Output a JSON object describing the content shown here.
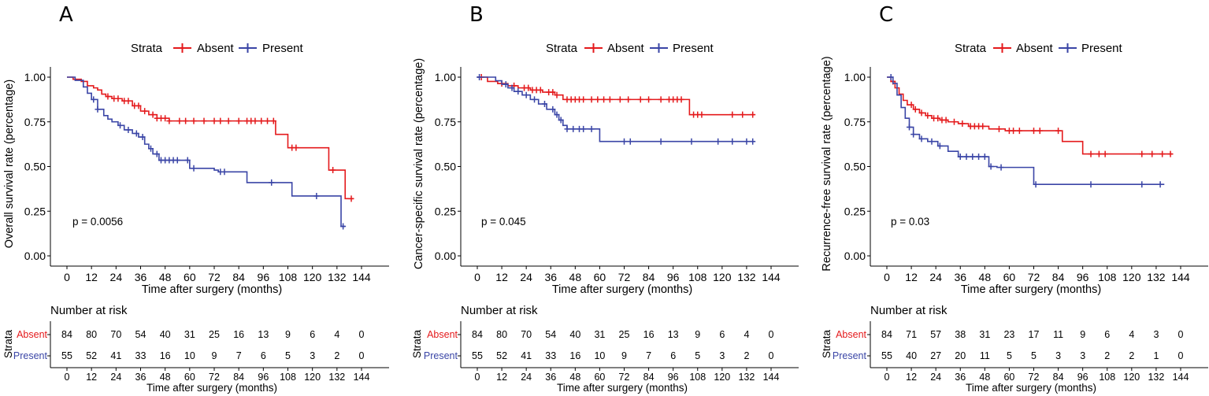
{
  "strata_legend_title": "Strata",
  "colors": {
    "absent": "#e41a1c",
    "present": "#3a45a6"
  },
  "risk_table_title": "Number at risk",
  "risk_strata_label": "Strata",
  "chart_data": [
    {
      "type": "line",
      "panel": "A",
      "ylabel": "Overall survival rate (percentage)",
      "xlabel": "Time after surgery (months)",
      "risk_xlabel": "Time after surgery (months)",
      "pvalue": "p = 0.0056",
      "xlim": [
        0,
        144
      ],
      "ylim": [
        0,
        1
      ],
      "xticks": [
        0,
        12,
        24,
        36,
        48,
        60,
        72,
        84,
        96,
        108,
        120,
        132,
        144
      ],
      "yticks": [
        "0.00",
        "0.25",
        "0.50",
        "0.75",
        "1.00"
      ],
      "series": [
        {
          "name": "Absent",
          "color": "#e41a1c",
          "x": [
            0,
            3,
            7,
            10,
            13,
            15,
            17,
            19,
            22,
            27,
            32,
            36,
            40,
            44,
            50,
            102,
            108,
            128,
            136,
            140
          ],
          "y": [
            1.0,
            0.988,
            0.976,
            0.952,
            0.94,
            0.928,
            0.905,
            0.892,
            0.88,
            0.867,
            0.84,
            0.81,
            0.79,
            0.77,
            0.755,
            0.68,
            0.605,
            0.48,
            0.32,
            0.32
          ],
          "censor_x": [
            20,
            23,
            25,
            28,
            30,
            33,
            35,
            38,
            42,
            44,
            46,
            48,
            50,
            55,
            58,
            62,
            67,
            72,
            75,
            79,
            84,
            88,
            90,
            92,
            95,
            98,
            101,
            110,
            112,
            130,
            139
          ]
        },
        {
          "name": "Present",
          "color": "#3a45a6",
          "x": [
            0,
            4,
            8,
            10,
            12,
            15,
            18,
            20,
            22,
            25,
            28,
            32,
            35,
            38,
            40,
            42,
            45,
            60,
            72,
            74,
            88,
            110,
            125,
            134,
            136
          ],
          "y": [
            1.0,
            0.982,
            0.945,
            0.91,
            0.875,
            0.82,
            0.785,
            0.765,
            0.75,
            0.73,
            0.705,
            0.685,
            0.665,
            0.625,
            0.6,
            0.57,
            0.535,
            0.49,
            0.48,
            0.47,
            0.41,
            0.335,
            0.335,
            0.165,
            0.165
          ],
          "censor_x": [
            13,
            15,
            26,
            30,
            34,
            37,
            41,
            44,
            46,
            48,
            50,
            52,
            54,
            59,
            62,
            75,
            77,
            100,
            122,
            135
          ]
        }
      ],
      "risk": {
        "Absent": [
          84,
          80,
          70,
          54,
          40,
          31,
          25,
          16,
          13,
          9,
          6,
          4,
          0
        ],
        "Present": [
          55,
          52,
          41,
          33,
          16,
          10,
          9,
          7,
          6,
          5,
          3,
          2,
          0
        ]
      }
    },
    {
      "type": "line",
      "panel": "B",
      "ylabel": "Cancer-specific survival rate (percentage)",
      "xlabel": "Time after surgery (months)",
      "risk_xlabel": "Time after surgery (months)",
      "pvalue": "p = 0.045",
      "xlim": [
        0,
        144
      ],
      "ylim": [
        0,
        1
      ],
      "xticks": [
        0,
        12,
        24,
        36,
        48,
        60,
        72,
        84,
        96,
        108,
        120,
        132,
        144
      ],
      "yticks": [
        "0.00",
        "0.25",
        "0.50",
        "0.75",
        "1.00"
      ],
      "series": [
        {
          "name": "Absent",
          "color": "#e41a1c",
          "x": [
            0,
            5,
            10,
            15,
            20,
            26,
            32,
            38,
            42,
            104,
            136
          ],
          "y": [
            1.0,
            0.976,
            0.964,
            0.952,
            0.94,
            0.928,
            0.916,
            0.9,
            0.875,
            0.79,
            0.79
          ],
          "censor_x": [
            2,
            12,
            18,
            23,
            25,
            27,
            29,
            31,
            35,
            37,
            39,
            44,
            46,
            48,
            50,
            52,
            56,
            59,
            62,
            65,
            70,
            74,
            80,
            84,
            90,
            94,
            96,
            98,
            100,
            106,
            108,
            110,
            125,
            130,
            135
          ]
        },
        {
          "name": "Present",
          "color": "#3a45a6",
          "x": [
            0,
            9,
            12,
            15,
            18,
            22,
            26,
            30,
            34,
            38,
            40,
            42,
            44,
            60,
            136
          ],
          "y": [
            1.0,
            0.98,
            0.96,
            0.94,
            0.92,
            0.9,
            0.875,
            0.85,
            0.82,
            0.79,
            0.76,
            0.73,
            0.71,
            0.64,
            0.64
          ],
          "censor_x": [
            1,
            14,
            17,
            20,
            24,
            28,
            33,
            37,
            39,
            41,
            44,
            47,
            50,
            52,
            56,
            72,
            75,
            90,
            105,
            118,
            125,
            132,
            135
          ]
        }
      ],
      "risk": {
        "Absent": [
          84,
          80,
          70,
          54,
          40,
          31,
          25,
          16,
          13,
          9,
          6,
          4,
          0
        ],
        "Present": [
          55,
          52,
          41,
          33,
          16,
          10,
          9,
          7,
          6,
          5,
          3,
          2,
          0
        ]
      }
    },
    {
      "type": "line",
      "panel": "C",
      "ylabel": "Recurrence-free survival rate (percentage)",
      "xlabel": "Time after surgery (months)",
      "risk_xlabel": "Time after surgery (months)",
      "pvalue": "p = 0.03",
      "xlim": [
        0,
        144
      ],
      "ylim": [
        0,
        1
      ],
      "xticks": [
        0,
        12,
        24,
        36,
        48,
        60,
        72,
        84,
        96,
        108,
        120,
        132,
        144
      ],
      "yticks": [
        "0.00",
        "0.25",
        "0.50",
        "0.75",
        "1.00"
      ],
      "series": [
        {
          "name": "Absent",
          "color": "#e41a1c",
          "x": [
            0,
            2,
            4,
            6,
            8,
            10,
            13,
            16,
            19,
            22,
            26,
            30,
            35,
            40,
            50,
            58,
            86,
            96,
            140
          ],
          "y": [
            1.0,
            0.976,
            0.94,
            0.905,
            0.87,
            0.845,
            0.82,
            0.8,
            0.785,
            0.77,
            0.76,
            0.75,
            0.74,
            0.725,
            0.71,
            0.7,
            0.64,
            0.57,
            0.57
          ],
          "censor_x": [
            3,
            12,
            14,
            17,
            20,
            23,
            25,
            27,
            29,
            33,
            37,
            41,
            43,
            45,
            47,
            55,
            60,
            62,
            65,
            72,
            75,
            84,
            100,
            104,
            107,
            125,
            130,
            135,
            139
          ]
        },
        {
          "name": "Present",
          "color": "#3a45a6",
          "x": [
            0,
            3,
            5,
            7,
            9,
            11,
            13,
            16,
            20,
            25,
            30,
            35,
            50,
            54,
            72,
            136
          ],
          "y": [
            1.0,
            0.965,
            0.9,
            0.83,
            0.77,
            0.72,
            0.68,
            0.655,
            0.64,
            0.615,
            0.585,
            0.555,
            0.5,
            0.495,
            0.4,
            0.4
          ],
          "censor_x": [
            2,
            11,
            13,
            17,
            22,
            26,
            36,
            39,
            42,
            45,
            48,
            51,
            56,
            73,
            100,
            125,
            134
          ]
        }
      ],
      "risk": {
        "Absent": [
          84,
          71,
          57,
          38,
          31,
          23,
          17,
          11,
          9,
          6,
          4,
          3,
          0
        ],
        "Present": [
          55,
          40,
          27,
          20,
          11,
          5,
          5,
          3,
          3,
          2,
          2,
          1,
          0
        ]
      }
    }
  ]
}
